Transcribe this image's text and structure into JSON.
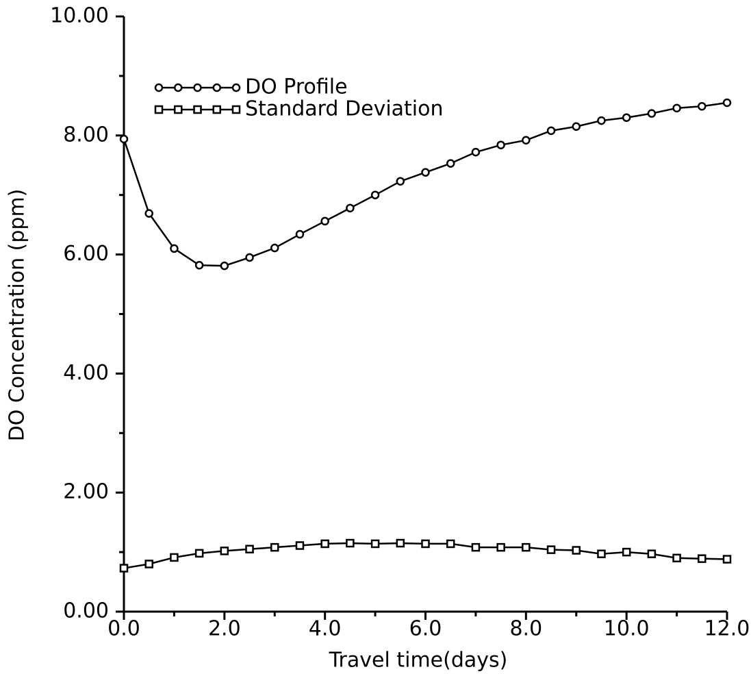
{
  "chart_data": {
    "type": "line",
    "x_label": "Travel time(days)",
    "y_label": "DO Concentration (ppm)",
    "x": [
      0,
      0.5,
      1,
      1.5,
      2,
      2.5,
      3,
      3.5,
      4,
      4.5,
      5,
      5.5,
      6,
      6.5,
      7,
      7.5,
      8,
      8.5,
      9,
      9.5,
      10,
      10.5,
      11,
      11.5,
      12
    ],
    "series": [
      {
        "name": "DO Profile",
        "color": "#000000",
        "marker": "circle",
        "values": [
          7.94,
          6.69,
          6.1,
          5.82,
          5.81,
          5.95,
          6.11,
          6.34,
          6.56,
          6.78,
          7.0,
          7.23,
          7.38,
          7.53,
          7.72,
          7.84,
          7.92,
          8.08,
          8.15,
          8.25,
          8.3,
          8.37,
          8.46,
          8.49,
          8.55
        ]
      },
      {
        "name": "Standard Deviation",
        "color": "#000000",
        "marker": "square",
        "values": [
          0.73,
          0.8,
          0.91,
          0.98,
          1.02,
          1.05,
          1.08,
          1.11,
          1.14,
          1.15,
          1.14,
          1.15,
          1.14,
          1.14,
          1.08,
          1.08,
          1.08,
          1.04,
          1.03,
          0.97,
          1.0,
          0.97,
          0.9,
          0.89,
          0.88
        ]
      }
    ],
    "xlim": [
      0,
      12
    ],
    "ylim": [
      0,
      10
    ],
    "xticks": [
      {
        "value": 0,
        "label": "0.0"
      },
      {
        "value": 2,
        "label": "2.0"
      },
      {
        "value": 4,
        "label": "4.0"
      },
      {
        "value": 6,
        "label": "6.0"
      },
      {
        "value": 8,
        "label": "8.0"
      },
      {
        "value": 10,
        "label": "10.0"
      },
      {
        "value": 12,
        "label": "12.0"
      }
    ],
    "yticks": [
      {
        "value": 0,
        "label": "0.00"
      },
      {
        "value": 2,
        "label": "2.00"
      },
      {
        "value": 4,
        "label": "4.00"
      },
      {
        "value": 6,
        "label": "6.00"
      },
      {
        "value": 8,
        "label": "8.00"
      },
      {
        "value": 10,
        "label": "10.00"
      }
    ],
    "xminorticks": [
      1,
      3,
      5,
      7,
      9,
      11
    ],
    "yminorticks": [
      1,
      3,
      5,
      7,
      9
    ],
    "grid": false,
    "legend": "upper left"
  }
}
